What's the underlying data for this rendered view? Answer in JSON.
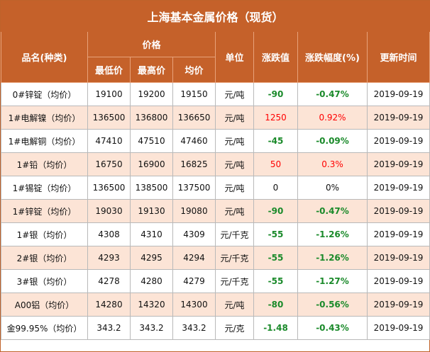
{
  "title": "上海基本金属价格（现货）",
  "headers": {
    "name": "品名(种类)",
    "price": "价格",
    "low": "最低价",
    "high": "最高价",
    "avg": "均价",
    "unit": "单位",
    "change": "涨跌值",
    "change_pct": "涨跌幅度(%)",
    "updated": "更新时间"
  },
  "colors": {
    "header_bg": "#c5612a",
    "alt_row_bg": "#fce4d6",
    "up": "#ff0000",
    "down": "#1a8a2a"
  },
  "rows": [
    {
      "name": "0#锌锭（均价）",
      "low": "19100",
      "high": "19200",
      "avg": "19150",
      "unit": "元/吨",
      "change": "-90",
      "pct": "-0.47%",
      "date": "2019-09-19",
      "dir": "down"
    },
    {
      "name": "1#电解镍（均价）",
      "low": "136500",
      "high": "136800",
      "avg": "136650",
      "unit": "元/吨",
      "change": "1250",
      "pct": "0.92%",
      "date": "2019-09-19",
      "dir": "up"
    },
    {
      "name": "1#电解铜（均价）",
      "low": "47410",
      "high": "47510",
      "avg": "47460",
      "unit": "元/吨",
      "change": "-45",
      "pct": "-0.09%",
      "date": "2019-09-19",
      "dir": "down"
    },
    {
      "name": "1#铅（均价）",
      "low": "16750",
      "high": "16900",
      "avg": "16825",
      "unit": "元/吨",
      "change": "50",
      "pct": "0.3%",
      "date": "2019-09-19",
      "dir": "up"
    },
    {
      "name": "1#锡锭（均价）",
      "low": "136500",
      "high": "138500",
      "avg": "137500",
      "unit": "元/吨",
      "change": "0",
      "pct": "0%",
      "date": "2019-09-19",
      "dir": "neutral"
    },
    {
      "name": "1#锌锭（均价）",
      "low": "19030",
      "high": "19130",
      "avg": "19080",
      "unit": "元/吨",
      "change": "-90",
      "pct": "-0.47%",
      "date": "2019-09-19",
      "dir": "down"
    },
    {
      "name": "1#银（均价）",
      "low": "4308",
      "high": "4310",
      "avg": "4309",
      "unit": "元/千克",
      "change": "-55",
      "pct": "-1.26%",
      "date": "2019-09-19",
      "dir": "down"
    },
    {
      "name": "2#银（均价）",
      "low": "4293",
      "high": "4295",
      "avg": "4294",
      "unit": "元/千克",
      "change": "-55",
      "pct": "-1.26%",
      "date": "2019-09-19",
      "dir": "down"
    },
    {
      "name": "3#银（均价）",
      "low": "4278",
      "high": "4280",
      "avg": "4279",
      "unit": "元/千克",
      "change": "-55",
      "pct": "-1.27%",
      "date": "2019-09-19",
      "dir": "down"
    },
    {
      "name": "A00铝（均价）",
      "low": "14280",
      "high": "14320",
      "avg": "14300",
      "unit": "元/吨",
      "change": "-80",
      "pct": "-0.56%",
      "date": "2019-09-19",
      "dir": "down"
    },
    {
      "name": "金99.95%（均价）",
      "low": "343.2",
      "high": "343.2",
      "avg": "343.2",
      "unit": "元/克",
      "change": "-1.48",
      "pct": "-0.43%",
      "date": "2019-09-19",
      "dir": "down"
    }
  ]
}
